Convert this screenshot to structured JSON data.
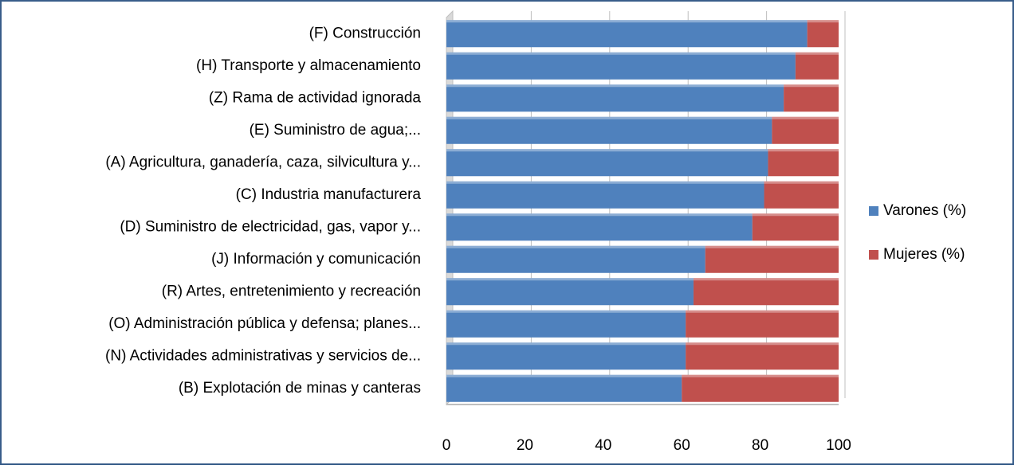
{
  "chart_data": {
    "type": "bar",
    "orientation": "horizontal",
    "stacked": true,
    "categories": [
      "(F) Construcción",
      "(H) Transporte y almacenamiento",
      "(Z) Rama de actividad ignorada",
      "(E) Suministro de agua;...",
      "(A) Agricultura, ganadería, caza, silvicultura y...",
      "(C) Industria manufacturera",
      "(D) Suministro de electricidad, gas, vapor y...",
      "(J) Información y comunicación",
      "(R) Artes, entretenimiento y recreación",
      "(O) Administración pública y defensa; planes...",
      "(N) Actividades administrativas y servicios de...",
      "(B) Explotación de minas y canteras"
    ],
    "series": [
      {
        "name": "Varones (%)",
        "color": "#4f81bd",
        "values": [
          92,
          89,
          86,
          83,
          82,
          81,
          78,
          66,
          63,
          61,
          61,
          60
        ]
      },
      {
        "name": "Mujeres (%)",
        "color": "#c0504d",
        "values": [
          8,
          11,
          14,
          17,
          18,
          19,
          22,
          34,
          37,
          39,
          39,
          40
        ]
      }
    ],
    "xlim": [
      0,
      100
    ],
    "xticks": [
      0,
      20,
      40,
      60,
      80,
      100
    ],
    "grid": true,
    "legend": "right"
  }
}
